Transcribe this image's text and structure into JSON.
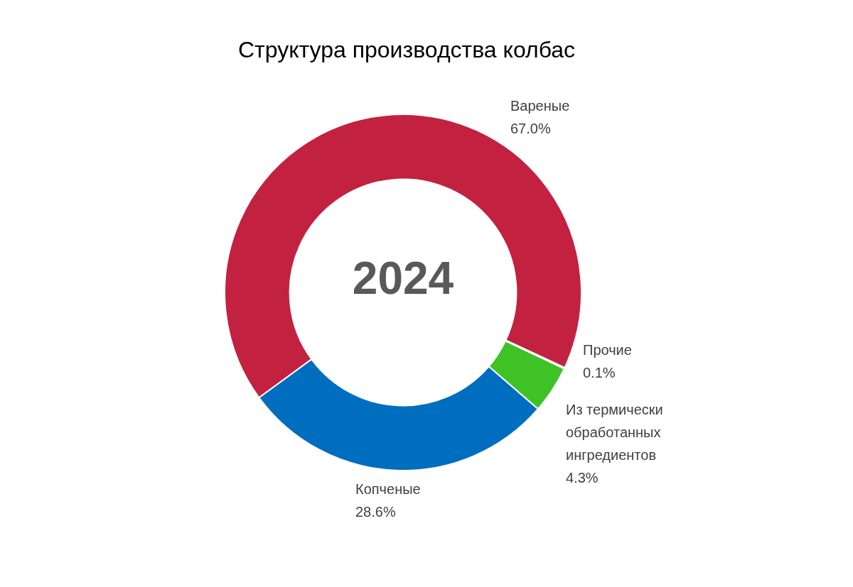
{
  "chart_data": {
    "type": "donut",
    "title": "Структура производства колбас",
    "categories": [
      "Вареные",
      "Прочие",
      "Из термически обработанных ингредиентов",
      "Копченые"
    ],
    "values": [
      67.0,
      0.1,
      4.3,
      28.6
    ],
    "value_labels": [
      "67.0%",
      "0.1%",
      "4.3%",
      "28.6%"
    ],
    "colors": [
      "#c2223f",
      "#a5a5a5",
      "#3fc225",
      "#006ebf"
    ],
    "annotations": [
      "2024"
    ],
    "legend": false
  }
}
